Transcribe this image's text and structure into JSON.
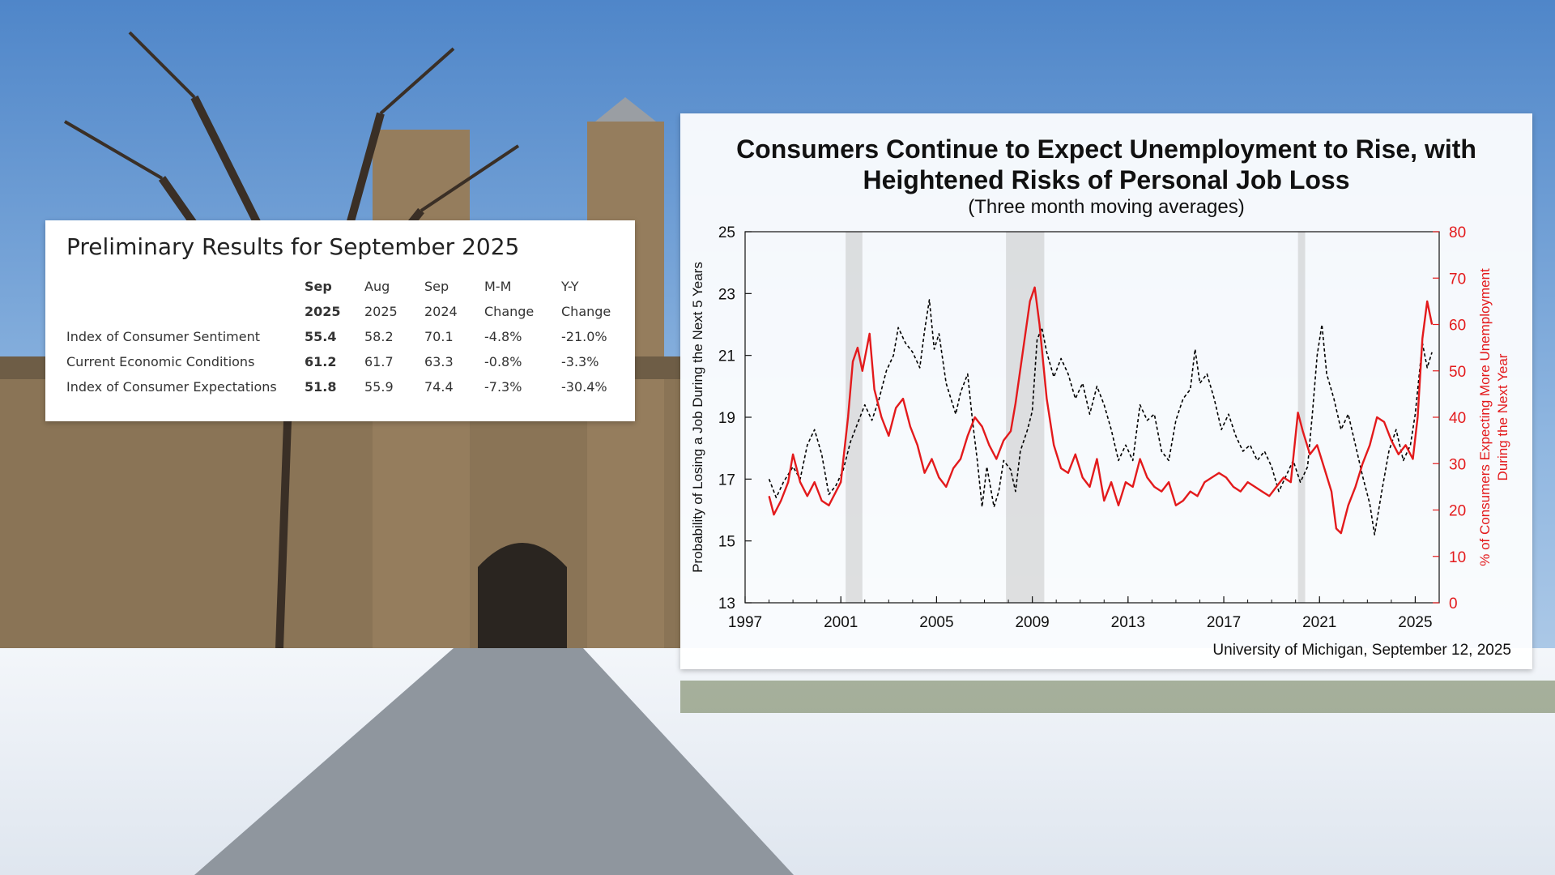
{
  "results_panel": {
    "title": "Preliminary Results for September 2025",
    "header_row1": [
      "Sep",
      "Aug",
      "Sep",
      "M-M",
      "Y-Y"
    ],
    "header_row2": [
      "2025",
      "2025",
      "2024",
      "Change",
      "Change"
    ],
    "rows": [
      {
        "label": "Index of Consumer Sentiment",
        "values": [
          "55.4",
          "58.2",
          "70.1",
          "-4.8%",
          "-21.0%"
        ]
      },
      {
        "label": "Current Economic Conditions",
        "values": [
          "61.2",
          "61.7",
          "63.3",
          "-0.8%",
          "-3.3%"
        ]
      },
      {
        "label": "Index of Consumer Expectations",
        "values": [
          "51.8",
          "55.9",
          "74.4",
          "-7.3%",
          "-30.4%"
        ]
      }
    ]
  },
  "chart_data": {
    "type": "line",
    "title_line1": "Consumers Continue to Expect Unemployment to Rise, with",
    "title_line2": "Heightened Risks of Personal Job Loss",
    "subtitle": "(Three month moving averages)",
    "source": "University of Michigan, September 12, 2025",
    "ylabel_left": "Probability of Losing a Job During the Next 5 Years",
    "ylabel_right_line1": "% of Consumers Expecting More Unemployment",
    "ylabel_right_line2": "During the Next Year",
    "xlim": [
      1997,
      2026
    ],
    "ylim_left": [
      13,
      25
    ],
    "ylim_right": [
      0,
      80
    ],
    "x_ticks": [
      "1997",
      "2001",
      "2005",
      "2009",
      "2013",
      "2017",
      "2021",
      "2025"
    ],
    "y_left_ticks": [
      "13",
      "15",
      "17",
      "19",
      "21",
      "23",
      "25"
    ],
    "y_right_ticks": [
      "0",
      "10",
      "20",
      "30",
      "40",
      "50",
      "60",
      "70",
      "80"
    ],
    "recessions": [
      [
        2001.2,
        2001.9
      ],
      [
        2007.9,
        2009.5
      ],
      [
        2020.1,
        2020.4
      ]
    ],
    "colors": {
      "left_series": "#000000",
      "right_series": "#e31a1c",
      "recession": "#bdbdbd"
    },
    "series": [
      {
        "axis": "left",
        "style": "dashed",
        "points": [
          [
            1998.0,
            17.0
          ],
          [
            1998.3,
            16.4
          ],
          [
            1998.6,
            16.9
          ],
          [
            1999.0,
            17.4
          ],
          [
            1999.3,
            17.0
          ],
          [
            1999.6,
            18.1
          ],
          [
            1999.9,
            18.6
          ],
          [
            2000.2,
            17.8
          ],
          [
            2000.5,
            16.5
          ],
          [
            2000.8,
            16.8
          ],
          [
            2001.1,
            17.3
          ],
          [
            2001.4,
            18.2
          ],
          [
            2001.7,
            18.8
          ],
          [
            2002.0,
            19.4
          ],
          [
            2002.3,
            18.9
          ],
          [
            2002.6,
            19.6
          ],
          [
            2002.9,
            20.5
          ],
          [
            2003.2,
            21.0
          ],
          [
            2003.4,
            21.9
          ],
          [
            2003.7,
            21.4
          ],
          [
            2004.0,
            21.1
          ],
          [
            2004.3,
            20.6
          ],
          [
            2004.5,
            21.8
          ],
          [
            2004.7,
            22.8
          ],
          [
            2004.9,
            21.2
          ],
          [
            2005.1,
            21.7
          ],
          [
            2005.4,
            20.1
          ],
          [
            2005.6,
            19.6
          ],
          [
            2005.8,
            19.1
          ],
          [
            2006.0,
            19.8
          ],
          [
            2006.3,
            20.4
          ],
          [
            2006.5,
            18.9
          ],
          [
            2006.7,
            17.6
          ],
          [
            2006.9,
            16.1
          ],
          [
            2007.1,
            17.4
          ],
          [
            2007.4,
            16.1
          ],
          [
            2007.6,
            16.6
          ],
          [
            2007.8,
            17.6
          ],
          [
            2008.1,
            17.3
          ],
          [
            2008.3,
            16.6
          ],
          [
            2008.5,
            17.9
          ],
          [
            2008.8,
            18.6
          ],
          [
            2009.0,
            19.2
          ],
          [
            2009.2,
            21.5
          ],
          [
            2009.4,
            21.9
          ],
          [
            2009.6,
            21.1
          ],
          [
            2009.9,
            20.3
          ],
          [
            2010.2,
            20.9
          ],
          [
            2010.5,
            20.4
          ],
          [
            2010.8,
            19.6
          ],
          [
            2011.1,
            20.1
          ],
          [
            2011.4,
            19.1
          ],
          [
            2011.7,
            20.0
          ],
          [
            2012.0,
            19.4
          ],
          [
            2012.3,
            18.6
          ],
          [
            2012.6,
            17.6
          ],
          [
            2012.9,
            18.1
          ],
          [
            2013.2,
            17.6
          ],
          [
            2013.5,
            19.4
          ],
          [
            2013.8,
            18.9
          ],
          [
            2014.1,
            19.1
          ],
          [
            2014.4,
            17.9
          ],
          [
            2014.7,
            17.6
          ],
          [
            2015.0,
            18.9
          ],
          [
            2015.3,
            19.6
          ],
          [
            2015.6,
            19.9
          ],
          [
            2015.8,
            21.2
          ],
          [
            2016.0,
            20.1
          ],
          [
            2016.3,
            20.4
          ],
          [
            2016.6,
            19.6
          ],
          [
            2016.9,
            18.6
          ],
          [
            2017.2,
            19.1
          ],
          [
            2017.5,
            18.4
          ],
          [
            2017.8,
            17.9
          ],
          [
            2018.1,
            18.1
          ],
          [
            2018.4,
            17.6
          ],
          [
            2018.7,
            17.9
          ],
          [
            2019.0,
            17.4
          ],
          [
            2019.3,
            16.6
          ],
          [
            2019.6,
            17.1
          ],
          [
            2019.9,
            17.6
          ],
          [
            2020.2,
            16.9
          ],
          [
            2020.5,
            17.4
          ],
          [
            2020.7,
            19.1
          ],
          [
            2020.9,
            21.0
          ],
          [
            2021.1,
            22.0
          ],
          [
            2021.3,
            20.4
          ],
          [
            2021.6,
            19.6
          ],
          [
            2021.9,
            18.6
          ],
          [
            2022.2,
            19.1
          ],
          [
            2022.5,
            18.1
          ],
          [
            2022.8,
            17.1
          ],
          [
            2023.1,
            16.2
          ],
          [
            2023.3,
            15.2
          ],
          [
            2023.6,
            16.6
          ],
          [
            2023.9,
            17.9
          ],
          [
            2024.2,
            18.6
          ],
          [
            2024.5,
            17.6
          ],
          [
            2024.8,
            18.1
          ],
          [
            2025.0,
            19.1
          ],
          [
            2025.3,
            21.4
          ],
          [
            2025.5,
            20.6
          ],
          [
            2025.7,
            21.1
          ]
        ]
      },
      {
        "axis": "right",
        "style": "solid",
        "points": [
          [
            1998.0,
            23
          ],
          [
            1998.2,
            19
          ],
          [
            1998.5,
            22
          ],
          [
            1998.8,
            26
          ],
          [
            1999.0,
            32
          ],
          [
            1999.3,
            26
          ],
          [
            1999.6,
            23
          ],
          [
            1999.9,
            26
          ],
          [
            2000.2,
            22
          ],
          [
            2000.5,
            21
          ],
          [
            2000.8,
            24
          ],
          [
            2001.0,
            26
          ],
          [
            2001.3,
            40
          ],
          [
            2001.5,
            52
          ],
          [
            2001.7,
            55
          ],
          [
            2001.9,
            50
          ],
          [
            2002.2,
            58
          ],
          [
            2002.4,
            46
          ],
          [
            2002.7,
            40
          ],
          [
            2003.0,
            36
          ],
          [
            2003.3,
            42
          ],
          [
            2003.6,
            44
          ],
          [
            2003.9,
            38
          ],
          [
            2004.2,
            34
          ],
          [
            2004.5,
            28
          ],
          [
            2004.8,
            31
          ],
          [
            2005.1,
            27
          ],
          [
            2005.4,
            25
          ],
          [
            2005.7,
            29
          ],
          [
            2006.0,
            31
          ],
          [
            2006.3,
            36
          ],
          [
            2006.6,
            40
          ],
          [
            2006.9,
            38
          ],
          [
            2007.2,
            34
          ],
          [
            2007.5,
            31
          ],
          [
            2007.8,
            35
          ],
          [
            2008.1,
            37
          ],
          [
            2008.3,
            43
          ],
          [
            2008.6,
            54
          ],
          [
            2008.9,
            65
          ],
          [
            2009.1,
            68
          ],
          [
            2009.3,
            60
          ],
          [
            2009.6,
            44
          ],
          [
            2009.9,
            34
          ],
          [
            2010.2,
            29
          ],
          [
            2010.5,
            28
          ],
          [
            2010.8,
            32
          ],
          [
            2011.1,
            27
          ],
          [
            2011.4,
            25
          ],
          [
            2011.7,
            31
          ],
          [
            2012.0,
            22
          ],
          [
            2012.3,
            26
          ],
          [
            2012.6,
            21
          ],
          [
            2012.9,
            26
          ],
          [
            2013.2,
            25
          ],
          [
            2013.5,
            31
          ],
          [
            2013.8,
            27
          ],
          [
            2014.1,
            25
          ],
          [
            2014.4,
            24
          ],
          [
            2014.7,
            26
          ],
          [
            2015.0,
            21
          ],
          [
            2015.3,
            22
          ],
          [
            2015.6,
            24
          ],
          [
            2015.9,
            23
          ],
          [
            2016.2,
            26
          ],
          [
            2016.5,
            27
          ],
          [
            2016.8,
            28
          ],
          [
            2017.1,
            27
          ],
          [
            2017.4,
            25
          ],
          [
            2017.7,
            24
          ],
          [
            2018.0,
            26
          ],
          [
            2018.3,
            25
          ],
          [
            2018.6,
            24
          ],
          [
            2018.9,
            23
          ],
          [
            2019.2,
            25
          ],
          [
            2019.5,
            27
          ],
          [
            2019.8,
            26
          ],
          [
            2020.1,
            41
          ],
          [
            2020.3,
            37
          ],
          [
            2020.6,
            32
          ],
          [
            2020.9,
            34
          ],
          [
            2021.2,
            29
          ],
          [
            2021.5,
            24
          ],
          [
            2021.7,
            16
          ],
          [
            2021.9,
            15
          ],
          [
            2022.2,
            21
          ],
          [
            2022.5,
            25
          ],
          [
            2022.8,
            30
          ],
          [
            2023.1,
            34
          ],
          [
            2023.4,
            40
          ],
          [
            2023.7,
            39
          ],
          [
            2024.0,
            35
          ],
          [
            2024.3,
            32
          ],
          [
            2024.6,
            34
          ],
          [
            2024.9,
            31
          ],
          [
            2025.1,
            40
          ],
          [
            2025.3,
            57
          ],
          [
            2025.5,
            65
          ],
          [
            2025.7,
            60
          ]
        ]
      }
    ]
  }
}
